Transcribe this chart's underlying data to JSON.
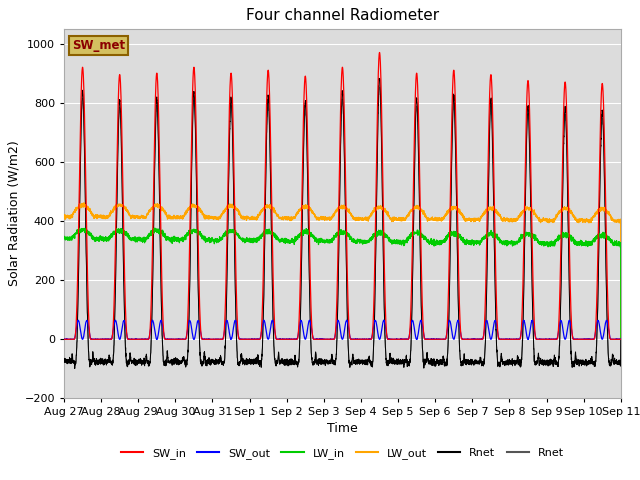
{
  "title": "Four channel Radiometer",
  "xlabel": "Time",
  "ylabel": "Solar Radiation (W/m2)",
  "ylim": [
    -200,
    1050
  ],
  "plot_bg": "#dcdcdc",
  "fig_bg": "#ffffff",
  "annotation_text": "SW_met",
  "annotation_bg": "#d4c060",
  "annotation_border": "#8b6000",
  "x_tick_labels": [
    "Aug 27",
    "Aug 28",
    "Aug 29",
    "Aug 30",
    "Aug 31",
    "Sep 1",
    "Sep 2",
    "Sep 3",
    "Sep 4",
    "Sep 5",
    "Sep 6",
    "Sep 7",
    "Sep 8",
    "Sep 9",
    "Sep 10",
    "Sep 11"
  ],
  "n_days": 15,
  "pts_per_day": 288,
  "day_peaks_SW_in": [
    920,
    895,
    900,
    920,
    900,
    910,
    890,
    920,
    970,
    900,
    910,
    895,
    875,
    870,
    865
  ],
  "lw_in_base": 340,
  "lw_out_base": 415,
  "sw_out_peak": 75,
  "rnet_night": -100,
  "legend_entries": [
    {
      "label": "SW_in",
      "color": "#ff0000"
    },
    {
      "label": "SW_out",
      "color": "#0000ff"
    },
    {
      "label": "LW_in",
      "color": "#00cc00"
    },
    {
      "label": "LW_out",
      "color": "#ffa500"
    },
    {
      "label": "Rnet",
      "color": "#000000"
    },
    {
      "label": "Rnet",
      "color": "#555555"
    }
  ]
}
